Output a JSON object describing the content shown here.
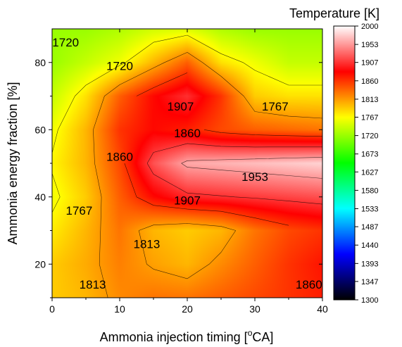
{
  "chart_data": {
    "type": "heatmap",
    "subtype": "filled-contour",
    "xlabel": "Ammonia injection timing [",
    "xlabel_unit": "CA]",
    "xlabel_superscript": "o",
    "ylabel": "Ammonia energy fraction [%]",
    "colorbar_title": "Temperature [K]",
    "x_ticks": [
      0,
      10,
      20,
      30,
      40
    ],
    "y_ticks": [
      20,
      40,
      60,
      80
    ],
    "xlim": [
      0,
      40
    ],
    "ylim": [
      10,
      90
    ],
    "colorbar": {
      "min": 1300,
      "max": 2000,
      "ticks": [
        2000,
        1953,
        1907,
        1860,
        1813,
        1767,
        1720,
        1673,
        1627,
        1580,
        1533,
        1487,
        1440,
        1393,
        1347,
        1300
      ],
      "colormap": [
        "#000000",
        "#0000ff",
        "#00ffff",
        "#00ff00",
        "#ffff00",
        "#ff0000",
        "#ffffff"
      ]
    },
    "x": [
      0,
      5,
      10,
      15,
      20,
      25,
      30,
      35,
      40
    ],
    "y": [
      10,
      20,
      30,
      40,
      50,
      60,
      70,
      80,
      90
    ],
    "z": [
      [
        1790,
        1800,
        1820,
        1830,
        1830,
        1840,
        1850,
        1860,
        1870
      ],
      [
        1790,
        1805,
        1825,
        1810,
        1800,
        1820,
        1840,
        1860,
        1875
      ],
      [
        1775,
        1800,
        1830,
        1800,
        1790,
        1800,
        1830,
        1850,
        1860
      ],
      [
        1760,
        1790,
        1840,
        1880,
        1900,
        1905,
        1910,
        1915,
        1920
      ],
      [
        1770,
        1800,
        1850,
        1920,
        1960,
        1965,
        1970,
        1975,
        1980
      ],
      [
        1760,
        1800,
        1860,
        1880,
        1870,
        1850,
        1840,
        1835,
        1830
      ],
      [
        1740,
        1780,
        1840,
        1880,
        1905,
        1860,
        1790,
        1780,
        1780
      ],
      [
        1720,
        1740,
        1760,
        1800,
        1840,
        1780,
        1760,
        1740,
        1740
      ],
      [
        1720,
        1720,
        1730,
        1745,
        1750,
        1730,
        1720,
        1720,
        1720
      ]
    ],
    "contour_labels": [
      {
        "text": "1720",
        "x": 2.0,
        "y": 86
      },
      {
        "text": "1720",
        "x": 10.0,
        "y": 79
      },
      {
        "text": "1907",
        "x": 19.0,
        "y": 67
      },
      {
        "text": "1767",
        "x": 33.0,
        "y": 67
      },
      {
        "text": "1860",
        "x": 20.0,
        "y": 59
      },
      {
        "text": "1860",
        "x": 10.0,
        "y": 52
      },
      {
        "text": "1953",
        "x": 30.0,
        "y": 46
      },
      {
        "text": "1907",
        "x": 20.0,
        "y": 39
      },
      {
        "text": "1767",
        "x": 4.0,
        "y": 36
      },
      {
        "text": "1813",
        "x": 14.0,
        "y": 26
      },
      {
        "text": "1813",
        "x": 6.0,
        "y": 14
      },
      {
        "text": "1860",
        "x": 38.0,
        "y": 14
      }
    ],
    "contour_levels": [
      1767,
      1813,
      1860,
      1907,
      1953
    ]
  }
}
